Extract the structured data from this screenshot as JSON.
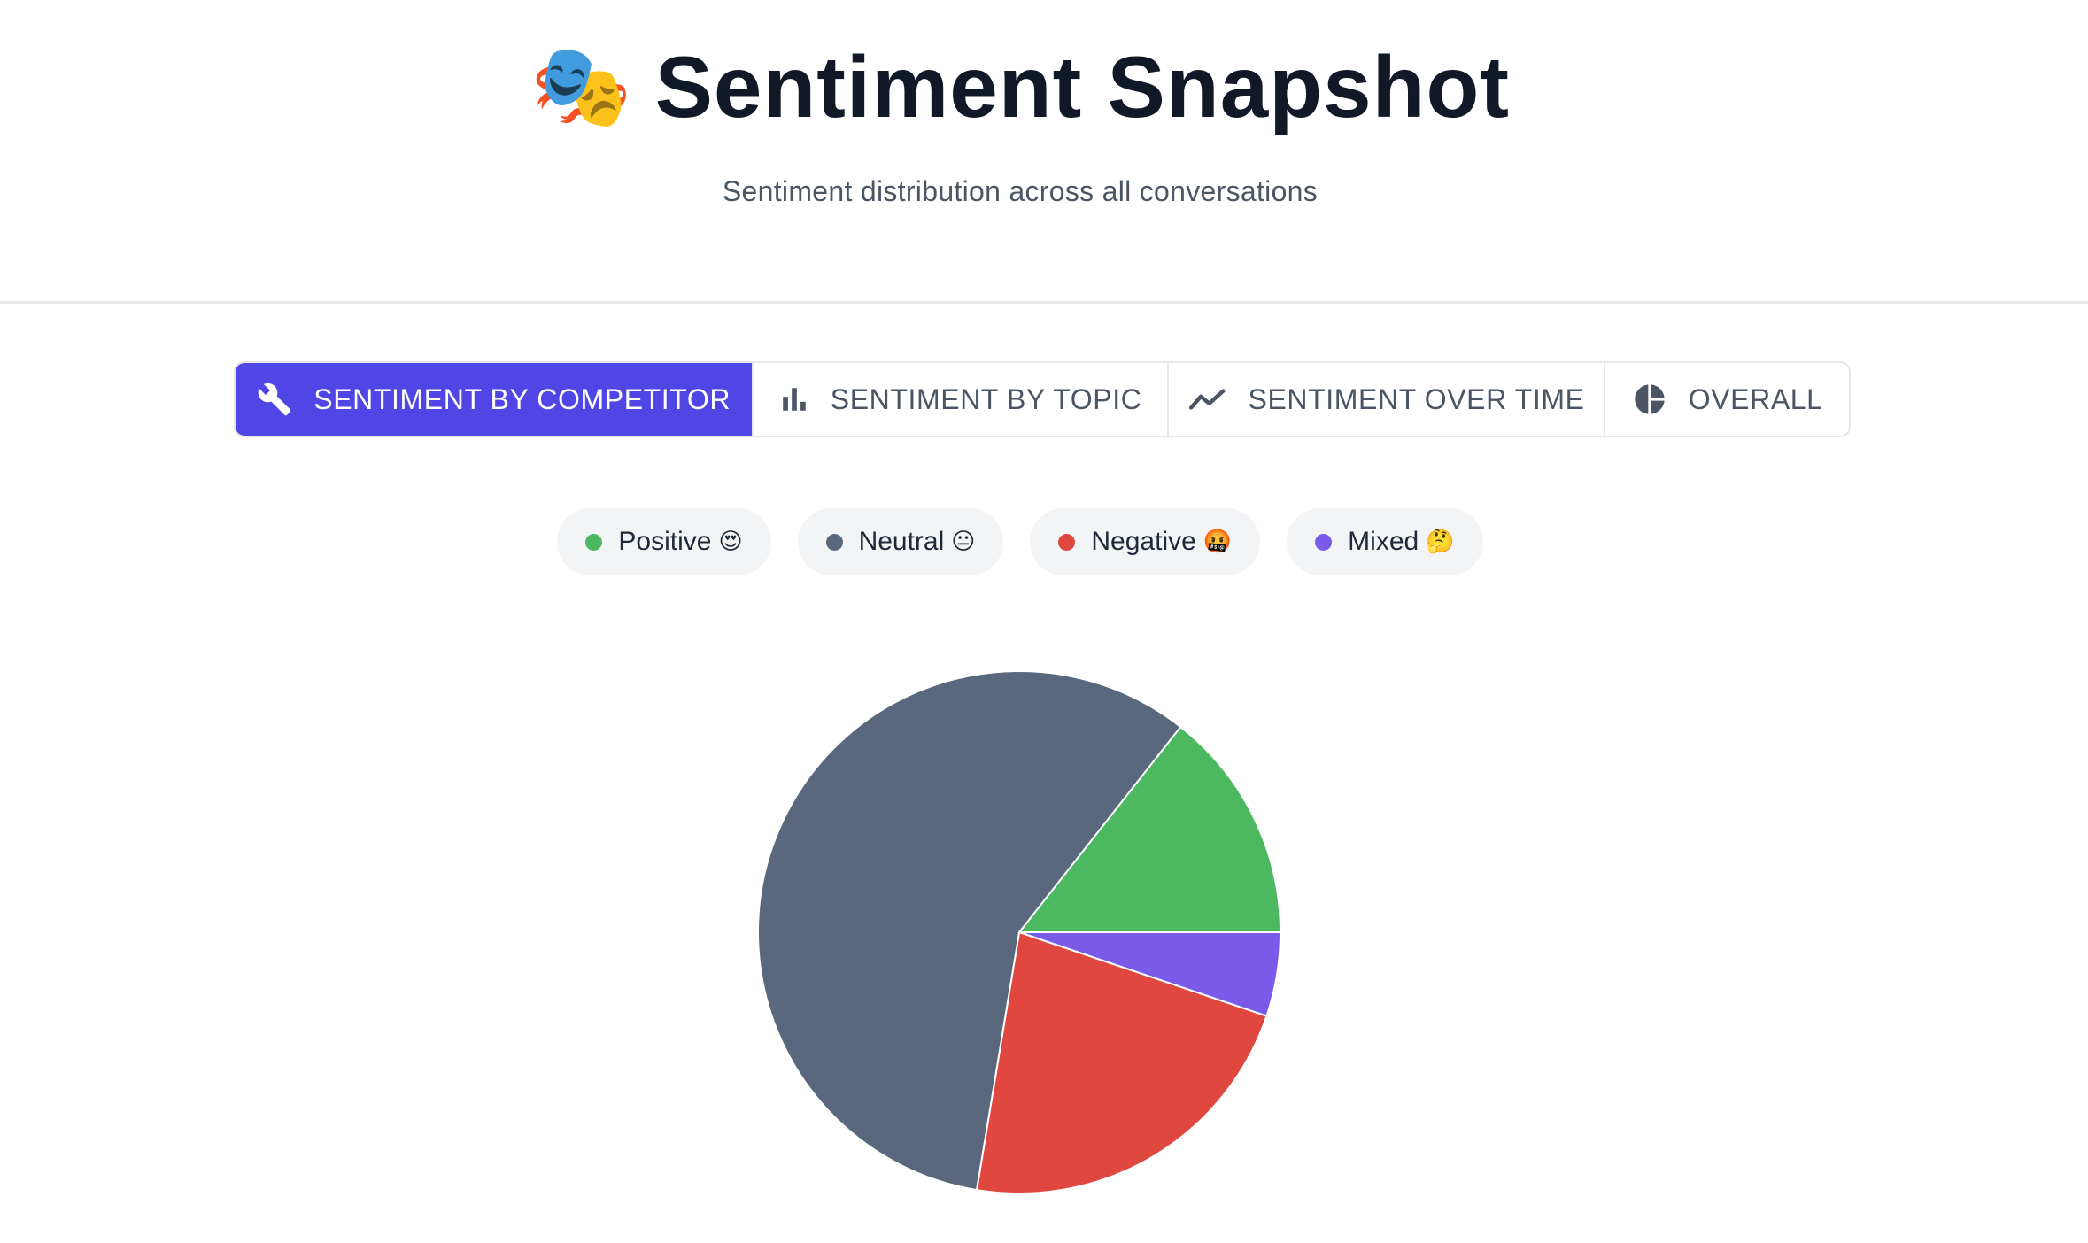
{
  "header": {
    "emoji": "🎭",
    "title": "Sentiment Snapshot",
    "subtitle": "Sentiment distribution across all conversations"
  },
  "tabs": [
    {
      "label": "SENTIMENT BY COMPETITOR",
      "icon": "wrench-icon",
      "active": true
    },
    {
      "label": "SENTIMENT BY TOPIC",
      "icon": "bar-chart-icon",
      "active": false
    },
    {
      "label": "SENTIMENT OVER TIME",
      "icon": "trend-line-icon",
      "active": false
    },
    {
      "label": "OVERALL",
      "icon": "pie-chart-icon",
      "active": false
    }
  ],
  "legend": [
    {
      "label": "Positive",
      "emoji": "😍",
      "color": "#4cb85f"
    },
    {
      "label": "Neutral",
      "emoji": "😐",
      "color": "#5a687d"
    },
    {
      "label": "Negative",
      "emoji": "🤬",
      "color": "#e0483f"
    },
    {
      "label": "Mixed",
      "emoji": "🤔",
      "color": "#7a5ae8"
    }
  ],
  "colors": {
    "accent": "#4f46e5",
    "positive": "#4cb85f",
    "neutral": "#5a687d",
    "negative": "#e0483f",
    "mixed": "#7a5ae8"
  },
  "chart_data": {
    "type": "pie",
    "categories": [
      "Positive",
      "Mixed",
      "Negative",
      "Neutral"
    ],
    "values": [
      14.4,
      5.2,
      22.4,
      58.0
    ],
    "colors": [
      "#4cb85f",
      "#7a5ae8",
      "#e0483f",
      "#5a687d"
    ]
  }
}
